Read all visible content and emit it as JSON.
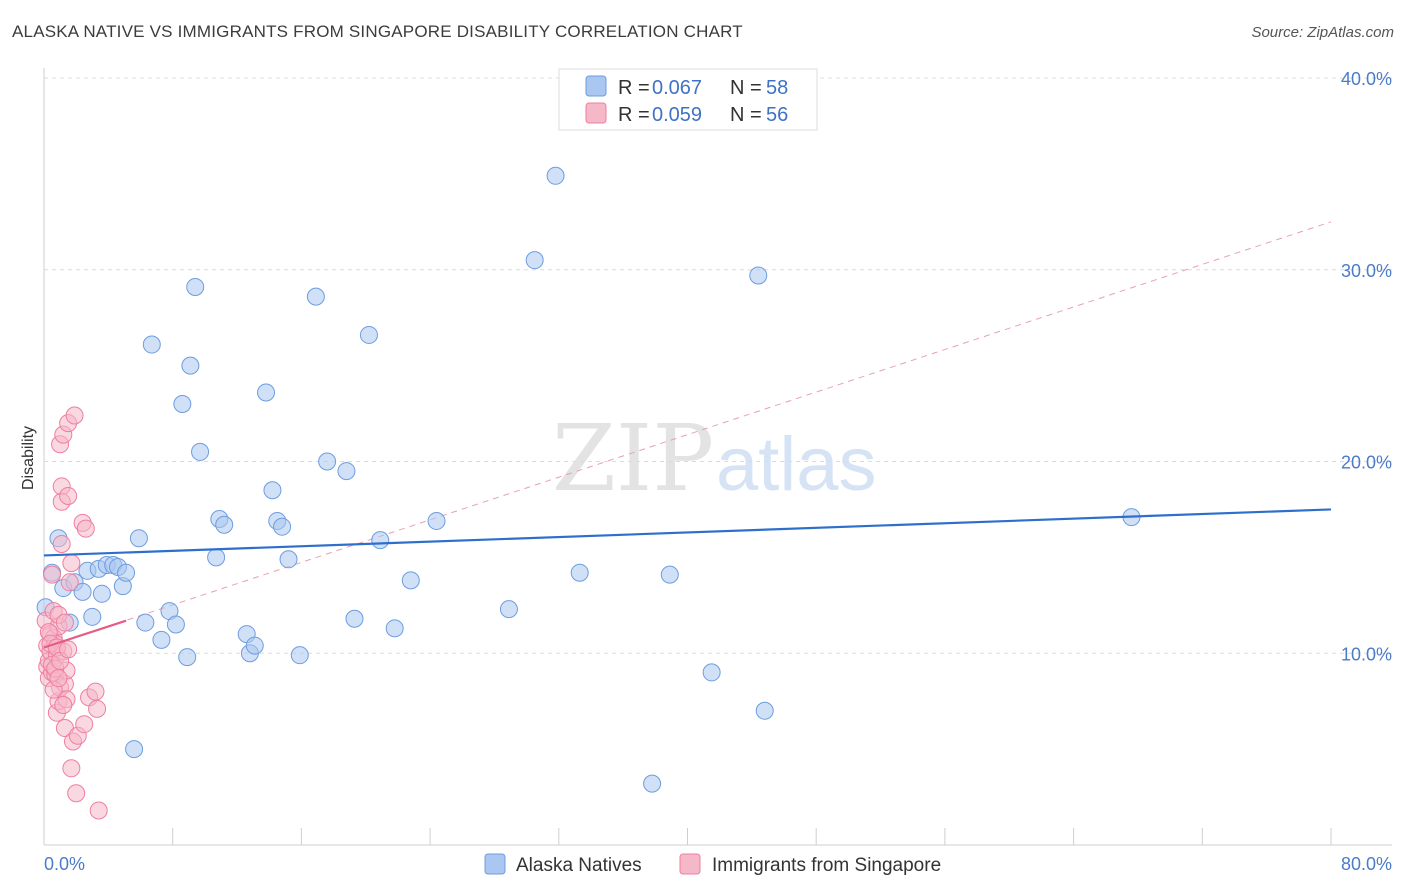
{
  "header": {
    "title": "ALASKA NATIVE VS IMMIGRANTS FROM SINGAPORE DISABILITY CORRELATION CHART",
    "source": "Source: ZipAtlas.com"
  },
  "watermark": {
    "zip": "ZIP",
    "atlas": "atlas"
  },
  "legend_top": {
    "rows": [
      {
        "r_label": "R = ",
        "r_value": "0.067",
        "n_label": "N = ",
        "n_value": "58",
        "color": "#a9c7f0"
      },
      {
        "r_label": "R = ",
        "r_value": "0.059",
        "n_label": "N = ",
        "n_value": "56",
        "color": "#f5b8c9"
      }
    ]
  },
  "legend_bottom": [
    {
      "label": "Alaska Natives",
      "color": "#a9c7f0"
    },
    {
      "label": "Immigrants from Singapore",
      "color": "#f5b8c9"
    }
  ],
  "chart_data": {
    "type": "scatter",
    "ylabel": "Disability",
    "xlim": [
      0,
      80
    ],
    "ylim": [
      0,
      40
    ],
    "x_tick_labels": [
      "0.0%",
      "80.0%"
    ],
    "y_ticks": [
      10,
      20,
      30,
      40
    ],
    "y_tick_labels": [
      "10.0%",
      "20.0%",
      "30.0%",
      "40.0%"
    ],
    "grid": "horizontal dashed",
    "series": [
      {
        "name": "Alaska Natives",
        "color": "#6d9de0",
        "fill": "#a9c7f0",
        "trend": {
          "x": [
            0,
            80
          ],
          "y": [
            15.1,
            17.5
          ],
          "style": "solid",
          "color": "#2f6fcb"
        },
        "points": [
          [
            0.1,
            12.4
          ],
          [
            0.5,
            14.2
          ],
          [
            0.9,
            16.0
          ],
          [
            1.2,
            13.4
          ],
          [
            1.6,
            11.6
          ],
          [
            1.9,
            13.7
          ],
          [
            2.4,
            13.2
          ],
          [
            2.7,
            14.3
          ],
          [
            3.0,
            11.9
          ],
          [
            3.4,
            14.4
          ],
          [
            3.6,
            13.1
          ],
          [
            3.9,
            14.6
          ],
          [
            4.3,
            14.6
          ],
          [
            4.6,
            14.5
          ],
          [
            4.9,
            13.5
          ],
          [
            5.1,
            14.2
          ],
          [
            5.6,
            5.0
          ],
          [
            5.9,
            16.0
          ],
          [
            6.3,
            11.6
          ],
          [
            6.7,
            26.1
          ],
          [
            7.3,
            10.7
          ],
          [
            7.8,
            12.2
          ],
          [
            8.2,
            11.5
          ],
          [
            8.6,
            23.0
          ],
          [
            8.9,
            9.8
          ],
          [
            9.1,
            25.0
          ],
          [
            9.4,
            29.1
          ],
          [
            9.7,
            20.5
          ],
          [
            10.7,
            15.0
          ],
          [
            10.9,
            17.0
          ],
          [
            11.2,
            16.7
          ],
          [
            12.6,
            11.0
          ],
          [
            12.8,
            10.0
          ],
          [
            13.1,
            10.4
          ],
          [
            13.8,
            23.6
          ],
          [
            14.2,
            18.5
          ],
          [
            14.5,
            16.9
          ],
          [
            14.8,
            16.6
          ],
          [
            15.2,
            14.9
          ],
          [
            15.9,
            9.9
          ],
          [
            16.9,
            28.6
          ],
          [
            17.6,
            20.0
          ],
          [
            18.8,
            19.5
          ],
          [
            19.3,
            11.8
          ],
          [
            20.2,
            26.6
          ],
          [
            20.9,
            15.9
          ],
          [
            21.8,
            11.3
          ],
          [
            22.8,
            13.8
          ],
          [
            24.4,
            16.9
          ],
          [
            28.9,
            12.3
          ],
          [
            30.5,
            30.5
          ],
          [
            31.8,
            34.9
          ],
          [
            33.3,
            14.2
          ],
          [
            37.8,
            3.2
          ],
          [
            38.9,
            14.1
          ],
          [
            41.5,
            9.0
          ],
          [
            44.4,
            29.7
          ],
          [
            44.8,
            7.0
          ],
          [
            67.6,
            17.1
          ]
        ]
      },
      {
        "name": "Immigrants from Singapore",
        "color": "#ee7fa0",
        "fill": "#f5b8c9",
        "trend_solid": {
          "x": [
            0,
            5.1
          ],
          "y": [
            10.3,
            11.7
          ],
          "style": "solid",
          "color": "#e55c86"
        },
        "trend_dashed": {
          "x": [
            0,
            80
          ],
          "y": [
            10.3,
            32.5
          ],
          "style": "dashed",
          "color": "#e8a0b5"
        },
        "points": [
          [
            0.1,
            11.7
          ],
          [
            0.2,
            10.4
          ],
          [
            0.2,
            9.3
          ],
          [
            0.3,
            8.7
          ],
          [
            0.3,
            9.6
          ],
          [
            0.4,
            11.0
          ],
          [
            0.4,
            10.1
          ],
          [
            0.5,
            14.1
          ],
          [
            0.5,
            9.0
          ],
          [
            0.6,
            12.2
          ],
          [
            0.6,
            10.8
          ],
          [
            0.7,
            8.9
          ],
          [
            0.7,
            10.5
          ],
          [
            0.8,
            9.9
          ],
          [
            0.8,
            6.9
          ],
          [
            0.9,
            11.4
          ],
          [
            0.9,
            7.5
          ],
          [
            1.0,
            8.2
          ],
          [
            1.0,
            20.9
          ],
          [
            1.1,
            18.7
          ],
          [
            1.1,
            17.9
          ],
          [
            1.1,
            15.7
          ],
          [
            1.2,
            21.4
          ],
          [
            1.2,
            10.1
          ],
          [
            1.3,
            8.4
          ],
          [
            1.3,
            6.1
          ],
          [
            1.4,
            9.1
          ],
          [
            1.4,
            7.6
          ],
          [
            1.5,
            18.2
          ],
          [
            1.5,
            22.0
          ],
          [
            1.6,
            13.7
          ],
          [
            1.7,
            14.7
          ],
          [
            1.7,
            4.0
          ],
          [
            1.8,
            5.4
          ],
          [
            1.9,
            22.4
          ],
          [
            2.0,
            2.7
          ],
          [
            2.1,
            5.7
          ],
          [
            2.4,
            16.8
          ],
          [
            2.5,
            6.3
          ],
          [
            2.6,
            16.5
          ],
          [
            2.8,
            7.7
          ],
          [
            3.2,
            8.0
          ],
          [
            3.3,
            7.1
          ],
          [
            3.4,
            1.8
          ],
          [
            0.3,
            11.1
          ],
          [
            0.4,
            10.5
          ],
          [
            0.5,
            9.4
          ],
          [
            0.6,
            8.1
          ],
          [
            0.7,
            9.2
          ],
          [
            0.8,
            10.3
          ],
          [
            0.9,
            12.0
          ],
          [
            0.9,
            8.7
          ],
          [
            1.0,
            9.6
          ],
          [
            1.2,
            7.3
          ],
          [
            1.3,
            11.6
          ],
          [
            1.5,
            10.2
          ]
        ]
      }
    ]
  }
}
